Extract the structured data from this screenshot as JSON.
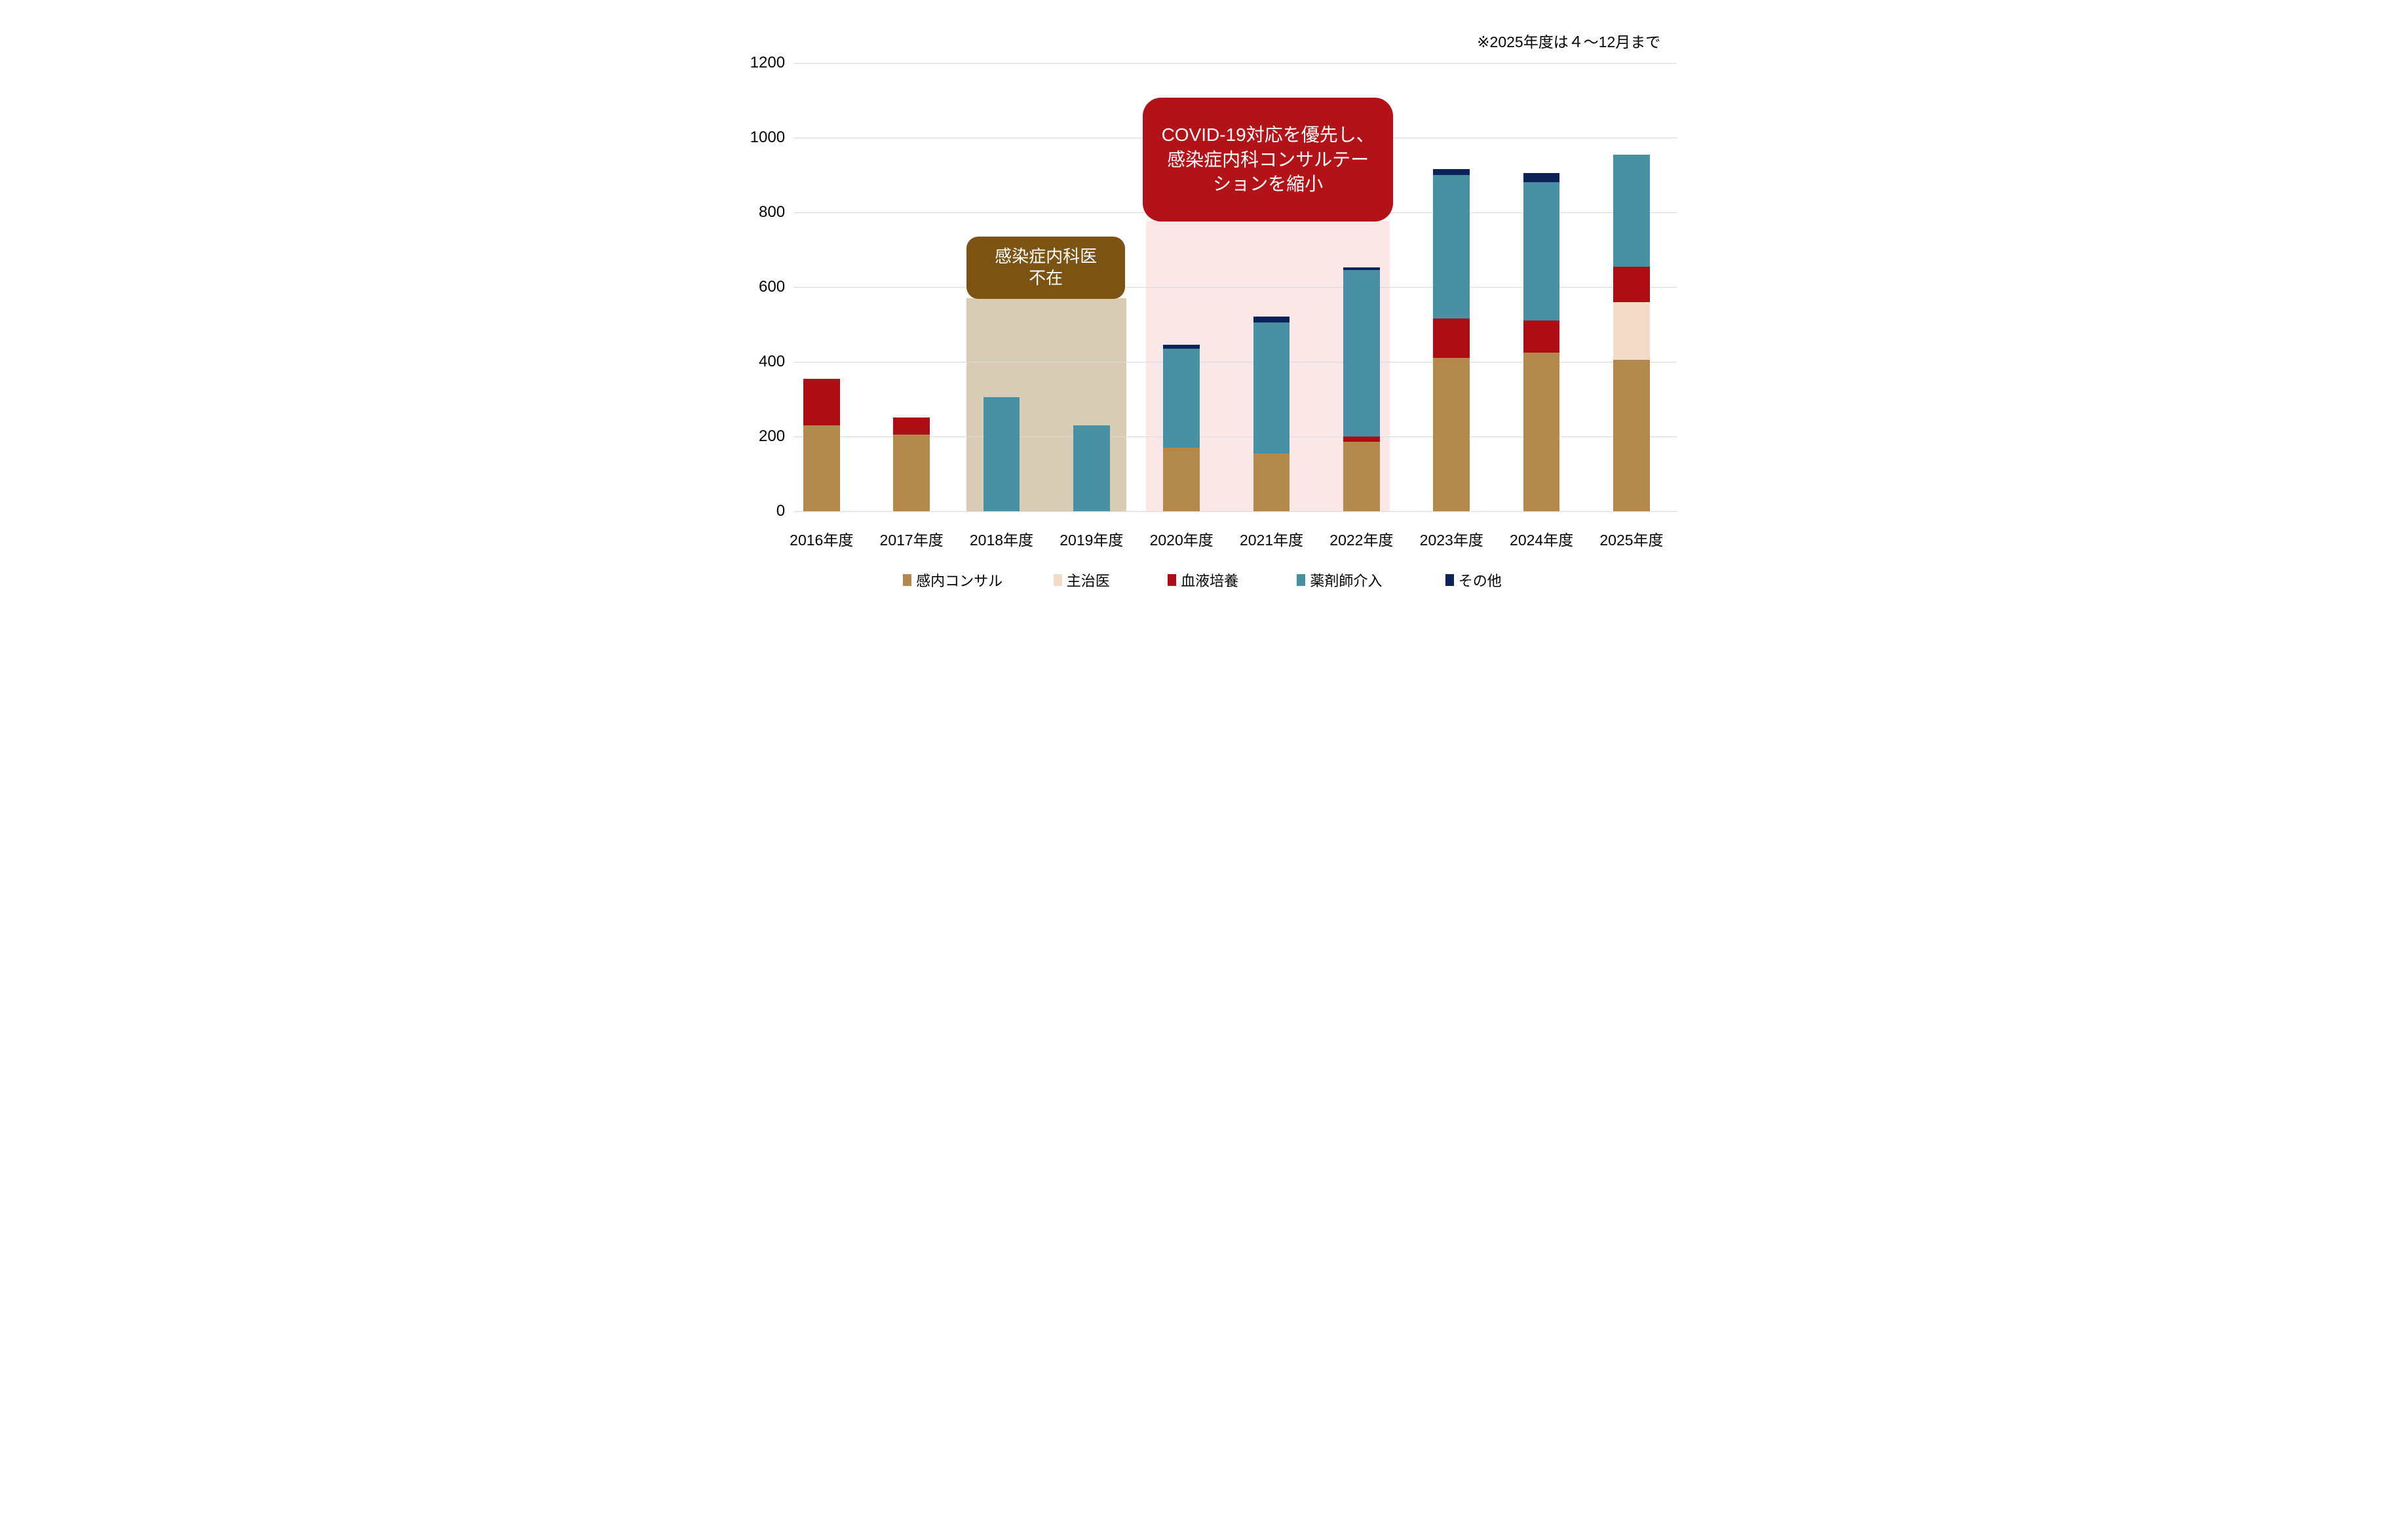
{
  "footnote": "※2025年度は４～12月まで",
  "annotations": {
    "physician_absent": {
      "text": "感染症内科医\n不在",
      "box_color": "#7B5414",
      "region_color": "#D8CCB6",
      "covers_categories": [
        "2018年度",
        "2019年度"
      ]
    },
    "covid": {
      "text": "COVID-19対応を優先し、\n感染症内科コンサルテー\nションを縮小",
      "box_color": "#B11318",
      "region_color": "#F9E8E7",
      "covers_categories": [
        "2020年度",
        "2021年度",
        "2022年度"
      ]
    }
  },
  "chart_data": {
    "type": "bar",
    "stacked": true,
    "grid": true,
    "legend_position": "bottom",
    "categories": [
      "2016年度",
      "2017年度",
      "2018年度",
      "2019年度",
      "2020年度",
      "2021年度",
      "2022年度",
      "2023年度",
      "2024年度",
      "2025年度"
    ],
    "series": [
      {
        "name": "感内コンサル",
        "color": "#B4894C",
        "values": [
          230,
          205,
          0,
          0,
          170,
          155,
          185,
          410,
          425,
          405
        ]
      },
      {
        "name": "主治医",
        "color": "#F2DBC8",
        "values": [
          0,
          0,
          0,
          0,
          0,
          0,
          0,
          0,
          0,
          155
        ]
      },
      {
        "name": "血液培養",
        "color": "#AE0D15",
        "values": [
          125,
          45,
          0,
          0,
          0,
          0,
          15,
          105,
          85,
          95
        ]
      },
      {
        "name": "薬剤師介入",
        "color": "#4791A3",
        "values": [
          0,
          0,
          305,
          230,
          265,
          350,
          445,
          385,
          370,
          300
        ]
      },
      {
        "name": "その他",
        "color": "#0D2257",
        "values": [
          0,
          0,
          0,
          0,
          10,
          15,
          8,
          15,
          25,
          0
        ]
      }
    ],
    "totals": [
      355,
      250,
      305,
      230,
      445,
      520,
      653,
      915,
      905,
      955
    ],
    "ylabel": "",
    "xlabel": "",
    "ylim": [
      0,
      1200
    ],
    "yticks": [
      0,
      200,
      400,
      600,
      800,
      1000,
      1200
    ],
    "gridline_color": "#D9D9D9"
  }
}
